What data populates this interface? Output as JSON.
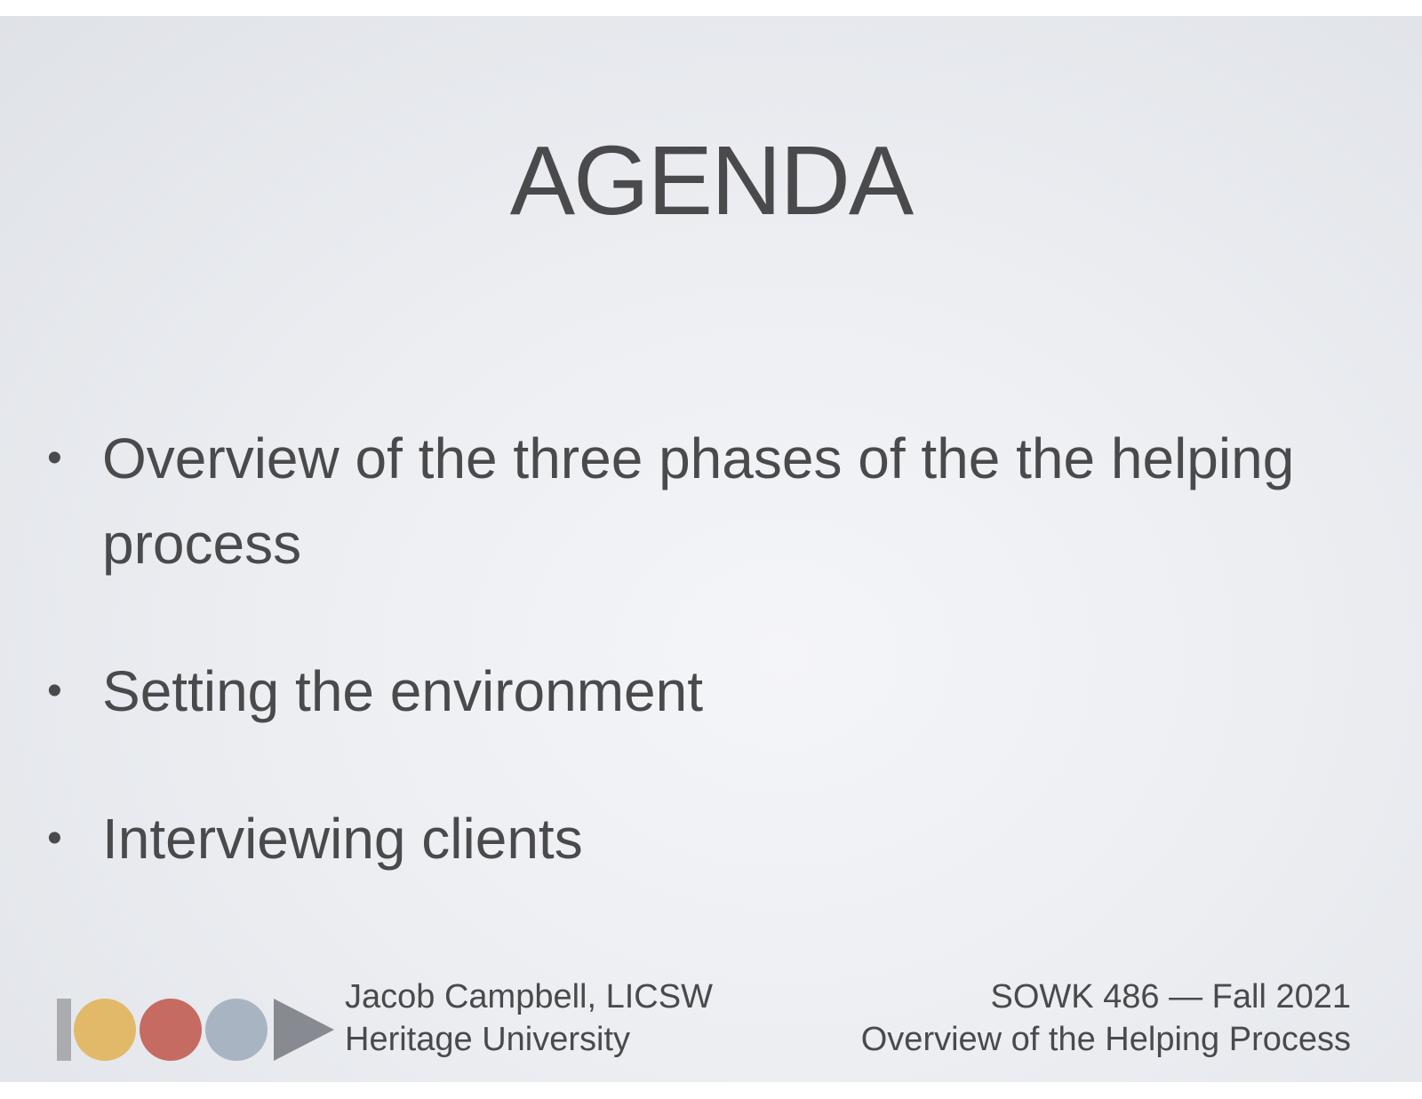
{
  "slide": {
    "title": "AGENDA",
    "bullets": [
      "Overview of the three phases of the the helping process",
      "Setting the environment",
      "Interviewing clients"
    ],
    "bullet_symbol": "•"
  },
  "footer": {
    "author": "Jacob Campbell, LICSW",
    "institution": "Heritage University",
    "course": "SOWK 486 — Fall 2021",
    "lecture": "Overview of the Helping Process"
  },
  "logo": {
    "icon": "heritage-logo-icon",
    "colors": {
      "bar": "#a9abae",
      "circle1": "#e2b968",
      "circle2": "#c56b62",
      "circle3": "#a9b4c3",
      "triangle": "#878a90"
    }
  }
}
